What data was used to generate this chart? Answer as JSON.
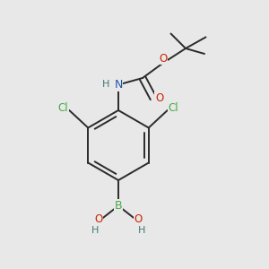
{
  "bg_color": "#e8e8e8",
  "bond_color": "#2a2a2a",
  "bond_width": 1.4,
  "dbo": 0.013,
  "colors": {
    "C": "#2a2a2a",
    "N": "#2255aa",
    "O": "#cc2200",
    "Cl": "#44aa44",
    "B": "#44aa44",
    "H": "#447777"
  },
  "fs": 8.5
}
